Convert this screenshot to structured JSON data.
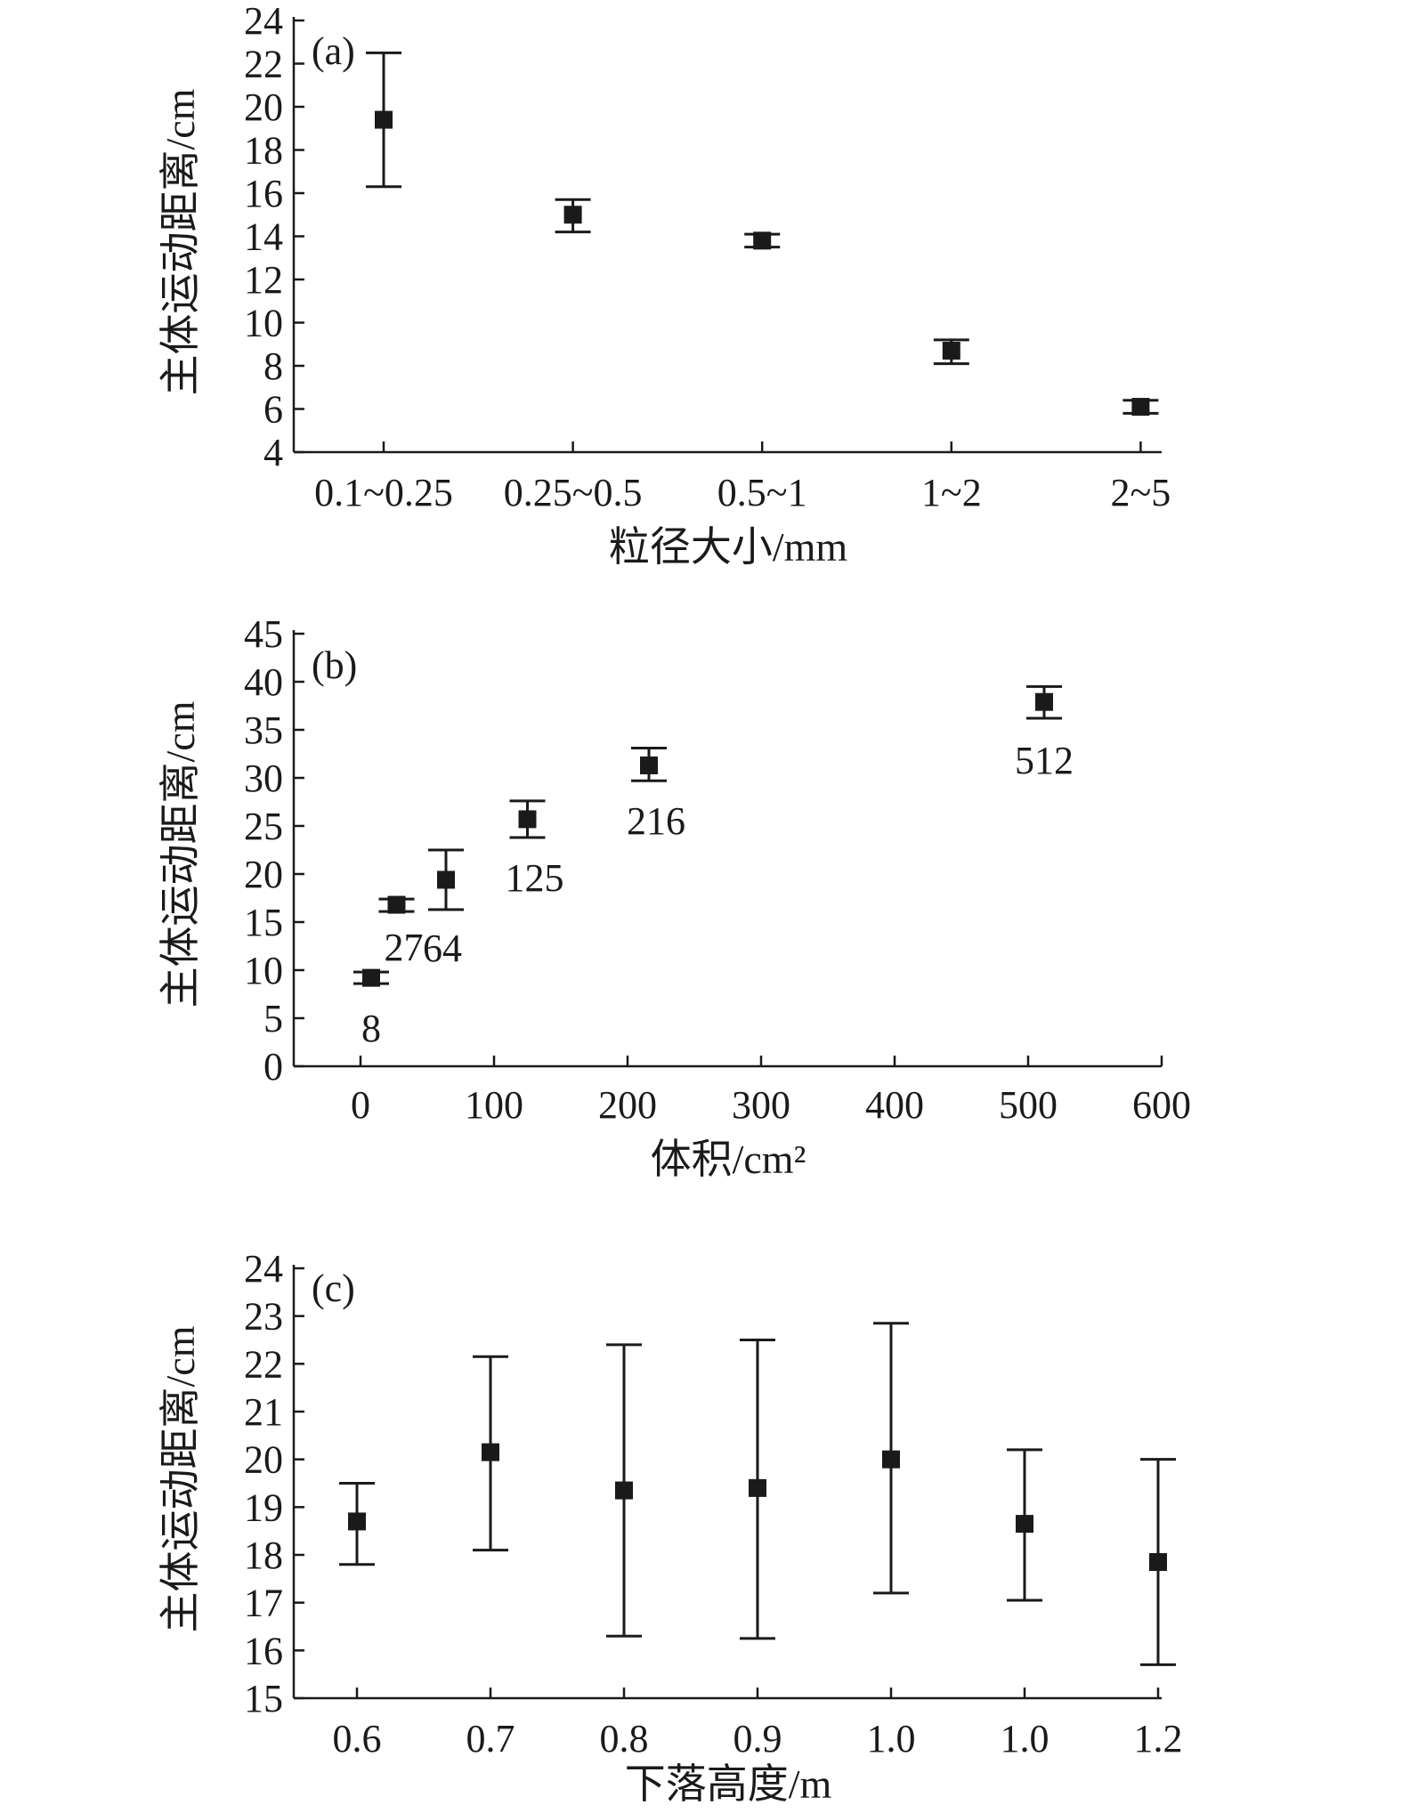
{
  "colors": {
    "ink": "#1a1a1a",
    "background": "#ffffff"
  },
  "chart_data": [
    {
      "panel_label": "(a)",
      "type": "scatter",
      "xlabel": "粒径大小/mm",
      "ylabel": "主体运动距离/cm",
      "ylim": [
        4,
        24
      ],
      "yticks": [
        "4",
        "6",
        "8",
        "10",
        "12",
        "14",
        "16",
        "18",
        "20",
        "22",
        "24"
      ],
      "categories": [
        "0.1~0.25",
        "0.25~0.5",
        "0.5~1",
        "1~2",
        "2~5"
      ],
      "values": [
        19.4,
        15.0,
        13.8,
        8.7,
        6.1
      ],
      "error_lower": [
        16.3,
        14.2,
        13.5,
        8.1,
        5.8
      ],
      "error_upper": [
        22.5,
        15.7,
        14.1,
        9.2,
        6.4
      ],
      "grid": false
    },
    {
      "panel_label": "(b)",
      "type": "scatter",
      "xlabel": "体积/cm²",
      "ylabel": "主体运动距离/cm",
      "xlim": [
        -50,
        600
      ],
      "ylim": [
        0,
        45
      ],
      "xticks": [
        "0",
        "100",
        "200",
        "300",
        "400",
        "500",
        "600"
      ],
      "yticks": [
        "0",
        "5",
        "10",
        "15",
        "20",
        "25",
        "30",
        "35",
        "40",
        "45"
      ],
      "x": [
        8,
        27,
        64,
        125,
        216,
        512
      ],
      "values": [
        9.2,
        16.8,
        19.4,
        25.7,
        31.3,
        37.9
      ],
      "error_lower": [
        8.6,
        16.1,
        16.3,
        23.8,
        29.7,
        36.2
      ],
      "error_upper": [
        9.8,
        17.4,
        22.5,
        27.6,
        33.1,
        39.5
      ],
      "point_labels": [
        "8",
        "27",
        "64",
        "125",
        "216",
        "512"
      ],
      "grid": false
    },
    {
      "panel_label": "(c)",
      "type": "scatter",
      "xlabel": "下落高度/m",
      "ylabel": "主体运动距离/cm",
      "ylim": [
        15,
        24
      ],
      "yticks": [
        "15",
        "16",
        "17",
        "18",
        "19",
        "20",
        "21",
        "22",
        "23",
        "24"
      ],
      "categories": [
        "0.6",
        "0.7",
        "0.8",
        "0.9",
        "1.0",
        "1.0",
        "1.2"
      ],
      "values": [
        18.7,
        20.15,
        19.35,
        19.4,
        20.0,
        18.65,
        17.85
      ],
      "error_lower": [
        17.8,
        18.1,
        16.3,
        16.25,
        17.2,
        17.05,
        15.7
      ],
      "error_upper": [
        19.5,
        22.15,
        22.4,
        22.5,
        22.85,
        20.2,
        20.0
      ],
      "grid": false
    }
  ]
}
